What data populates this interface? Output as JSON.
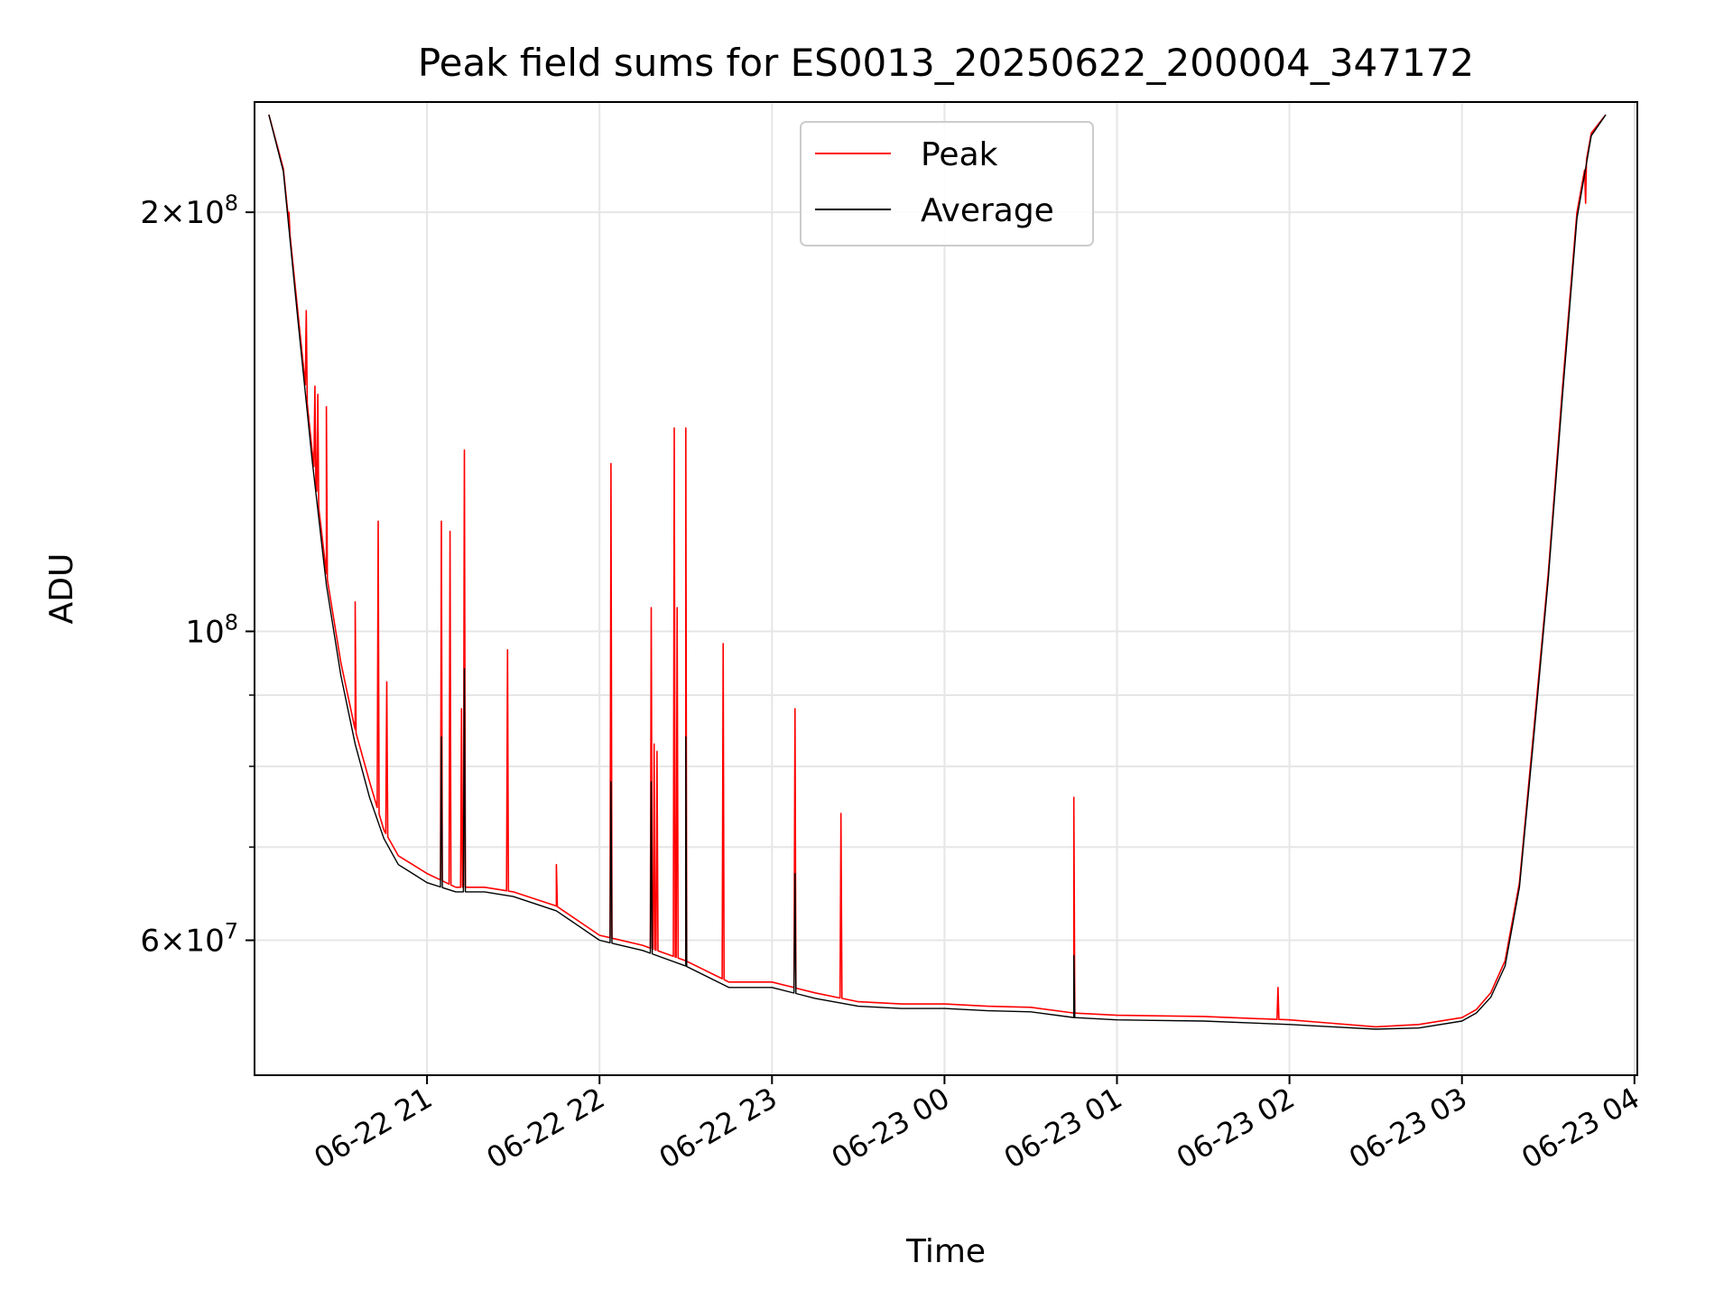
{
  "chart_data": {
    "type": "line",
    "title": "Peak field sums for ES0013_20250622_200004_347172",
    "xlabel": "Time",
    "ylabel": "ADU",
    "yscale": "log",
    "ylim": [
      48000000,
      240000000
    ],
    "xlim": [
      "2025-06-22 20:00",
      "2025-06-23 04:01"
    ],
    "grid": true,
    "legend_placement": "upper center",
    "x_ticks": [
      {
        "value": "2025-06-22 21:00",
        "label": "06-22 21"
      },
      {
        "value": "2025-06-22 22:00",
        "label": "06-22 22"
      },
      {
        "value": "2025-06-22 23:00",
        "label": "06-22 23"
      },
      {
        "value": "2025-06-23 00:00",
        "label": "06-23 00"
      },
      {
        "value": "2025-06-23 01:00",
        "label": "06-23 01"
      },
      {
        "value": "2025-06-23 02:00",
        "label": "06-23 02"
      },
      {
        "value": "2025-06-23 03:00",
        "label": "06-23 03"
      },
      {
        "value": "2025-06-23 04:00",
        "label": "06-23 04"
      }
    ],
    "y_major_ticks": [
      {
        "value": 60000000,
        "mantissa": "6",
        "exponent": "7"
      },
      {
        "value": 100000000,
        "mantissa": "",
        "exponent": "8"
      },
      {
        "value": 200000000,
        "mantissa": "2",
        "exponent": "8"
      }
    ],
    "y_minor_gridlines": [
      70000000,
      80000000,
      90000000
    ],
    "series": [
      {
        "name": "Peak",
        "color": "#ff0000",
        "x": [
          "2025-06-22 20:05",
          "2025-06-22 20:10",
          "2025-06-22 20:15",
          "2025-06-22 20:20",
          "2025-06-22 20:25",
          "2025-06-22 20:30",
          "2025-06-22 20:35",
          "2025-06-22 20:40",
          "2025-06-22 20:45",
          "2025-06-22 20:50",
          "2025-06-22 20:55",
          "2025-06-22 21:00",
          "2025-06-22 21:10",
          "2025-06-22 21:20",
          "2025-06-22 21:30",
          "2025-06-22 21:45",
          "2025-06-22 22:00",
          "2025-06-22 22:15",
          "2025-06-22 22:30",
          "2025-06-22 22:45",
          "2025-06-22 23:00",
          "2025-06-22 23:15",
          "2025-06-22 23:30",
          "2025-06-22 23:45",
          "2025-06-23 00:00",
          "2025-06-23 00:15",
          "2025-06-23 00:30",
          "2025-06-23 00:45",
          "2025-06-23 01:00",
          "2025-06-23 01:30",
          "2025-06-23 02:00",
          "2025-06-23 02:15",
          "2025-06-23 02:30",
          "2025-06-23 02:45",
          "2025-06-23 03:00",
          "2025-06-23 03:05",
          "2025-06-23 03:10",
          "2025-06-23 03:15",
          "2025-06-23 03:20",
          "2025-06-23 03:25",
          "2025-06-23 03:30",
          "2025-06-23 03:35",
          "2025-06-23 03:40",
          "2025-06-23 03:45",
          "2025-06-23 03:50"
        ],
        "y": [
          235000000,
          215000000,
          170000000,
          135000000,
          110000000,
          95000000,
          85000000,
          78000000,
          72000000,
          69000000,
          68000000,
          67000000,
          65500000,
          65500000,
          65000000,
          63500000,
          60500000,
          59500000,
          58000000,
          56000000,
          56000000,
          55000000,
          54200000,
          54000000,
          54000000,
          53800000,
          53700000,
          53200000,
          53000000,
          52900000,
          52600000,
          52300000,
          52000000,
          52200000,
          52800000,
          53500000,
          55000000,
          58000000,
          66000000,
          85000000,
          110000000,
          150000000,
          200000000,
          228000000,
          235000000
        ],
        "spikes": [
          {
            "x": "2025-06-22 20:12",
            "y": 200000000
          },
          {
            "x": "2025-06-22 20:18",
            "y": 170000000
          },
          {
            "x": "2025-06-22 20:21",
            "y": 150000000
          },
          {
            "x": "2025-06-22 20:22",
            "y": 148000000
          },
          {
            "x": "2025-06-22 20:25",
            "y": 145000000
          },
          {
            "x": "2025-06-22 20:35",
            "y": 105000000
          },
          {
            "x": "2025-06-22 20:43",
            "y": 120000000
          },
          {
            "x": "2025-06-22 20:46",
            "y": 92000000
          },
          {
            "x": "2025-06-22 21:05",
            "y": 120000000
          },
          {
            "x": "2025-06-22 21:08",
            "y": 118000000
          },
          {
            "x": "2025-06-22 21:12",
            "y": 88000000
          },
          {
            "x": "2025-06-22 21:13",
            "y": 135000000
          },
          {
            "x": "2025-06-22 21:28",
            "y": 97000000
          },
          {
            "x": "2025-06-22 21:45",
            "y": 68000000
          },
          {
            "x": "2025-06-22 22:04",
            "y": 132000000
          },
          {
            "x": "2025-06-22 22:18",
            "y": 104000000
          },
          {
            "x": "2025-06-22 22:19",
            "y": 83000000
          },
          {
            "x": "2025-06-22 22:20",
            "y": 82000000
          },
          {
            "x": "2025-06-22 22:26",
            "y": 140000000
          },
          {
            "x": "2025-06-22 22:27",
            "y": 104000000
          },
          {
            "x": "2025-06-22 22:30",
            "y": 140000000
          },
          {
            "x": "2025-06-22 22:43",
            "y": 98000000
          },
          {
            "x": "2025-06-22 23:08",
            "y": 88000000
          },
          {
            "x": "2025-06-22 23:24",
            "y": 74000000
          },
          {
            "x": "2025-06-23 00:45",
            "y": 76000000
          },
          {
            "x": "2025-06-23 01:56",
            "y": 55500000
          },
          {
            "x": "2025-06-23 03:43",
            "y": 203000000
          }
        ]
      },
      {
        "name": "Average",
        "color": "#000000",
        "x": [
          "2025-06-22 20:05",
          "2025-06-22 20:10",
          "2025-06-22 20:15",
          "2025-06-22 20:20",
          "2025-06-22 20:25",
          "2025-06-22 20:30",
          "2025-06-22 20:35",
          "2025-06-22 20:40",
          "2025-06-22 20:45",
          "2025-06-22 20:50",
          "2025-06-22 20:55",
          "2025-06-22 21:00",
          "2025-06-22 21:10",
          "2025-06-22 21:20",
          "2025-06-22 21:30",
          "2025-06-22 21:45",
          "2025-06-22 22:00",
          "2025-06-22 22:15",
          "2025-06-22 22:30",
          "2025-06-22 22:45",
          "2025-06-22 23:00",
          "2025-06-22 23:15",
          "2025-06-22 23:30",
          "2025-06-22 23:45",
          "2025-06-23 00:00",
          "2025-06-23 00:15",
          "2025-06-23 00:30",
          "2025-06-23 00:45",
          "2025-06-23 01:00",
          "2025-06-23 01:30",
          "2025-06-23 02:00",
          "2025-06-23 02:15",
          "2025-06-23 02:30",
          "2025-06-23 02:45",
          "2025-06-23 03:00",
          "2025-06-23 03:05",
          "2025-06-23 03:10",
          "2025-06-23 03:15",
          "2025-06-23 03:20",
          "2025-06-23 03:25",
          "2025-06-23 03:30",
          "2025-06-23 03:35",
          "2025-06-23 03:40",
          "2025-06-23 03:45",
          "2025-06-23 03:50"
        ],
        "y": [
          235000000,
          214000000,
          168000000,
          133000000,
          108000000,
          93000000,
          83000000,
          76000000,
          71000000,
          68000000,
          67000000,
          66000000,
          65000000,
          65000000,
          64500000,
          63000000,
          60000000,
          59000000,
          57500000,
          55500000,
          55500000,
          54500000,
          53800000,
          53600000,
          53600000,
          53400000,
          53300000,
          52800000,
          52600000,
          52500000,
          52200000,
          52000000,
          51800000,
          51900000,
          52500000,
          53200000,
          54600000,
          57500000,
          65500000,
          84000000,
          109000000,
          148000000,
          198000000,
          227000000,
          235000000
        ],
        "spikes": [
          {
            "x": "2025-06-22 21:13",
            "y": 94000000
          },
          {
            "x": "2025-06-22 21:05",
            "y": 84000000
          },
          {
            "x": "2025-06-22 22:04",
            "y": 78000000
          },
          {
            "x": "2025-06-22 22:18",
            "y": 78000000
          },
          {
            "x": "2025-06-22 22:30",
            "y": 84000000
          },
          {
            "x": "2025-06-22 23:08",
            "y": 67000000
          },
          {
            "x": "2025-06-23 00:45",
            "y": 58500000
          }
        ]
      }
    ]
  }
}
